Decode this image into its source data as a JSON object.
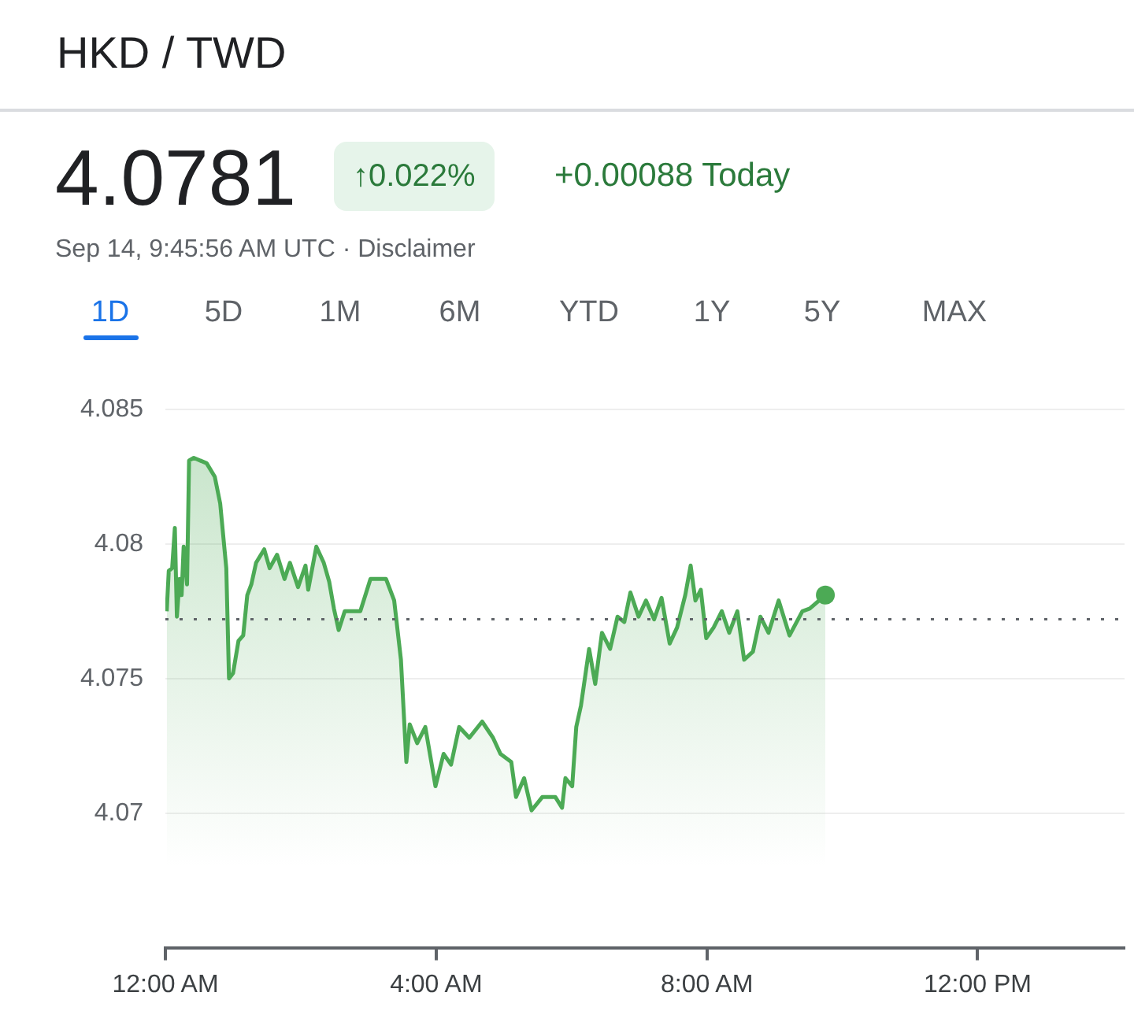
{
  "chart_data": {
    "type": "area",
    "title": "HKD / TWD",
    "subtitle": "Sep 14, 9:45:56 AM UTC · Disclaimer",
    "annotations": [
      "4.0781",
      "↑0.022%",
      "+0.00088 Today",
      "1D",
      "5D",
      "1M",
      "6M",
      "YTD",
      "1Y",
      "5Y",
      "MAX"
    ],
    "x": [
      0.02,
      0.05,
      0.1,
      0.14,
      0.17,
      0.21,
      0.24,
      0.27,
      0.32,
      0.35,
      0.42,
      0.61,
      0.73,
      0.81,
      0.9,
      0.94,
      1.0,
      1.08,
      1.15,
      1.21,
      1.27,
      1.34,
      1.46,
      1.54,
      1.65,
      1.76,
      1.84,
      1.96,
      2.07,
      2.11,
      2.23,
      2.34,
      2.42,
      2.49,
      2.56,
      2.65,
      2.88,
      3.03,
      3.26,
      3.38,
      3.48,
      3.56,
      3.61,
      3.72,
      3.84,
      3.99,
      4.11,
      4.22,
      4.34,
      4.49,
      4.68,
      4.84,
      4.95,
      5.11,
      5.18,
      5.3,
      5.41,
      5.57,
      5.76,
      5.86,
      5.91,
      6.01,
      6.07,
      6.14,
      6.26,
      6.35,
      6.45,
      6.57,
      6.68,
      6.78,
      6.87,
      6.99,
      7.1,
      7.22,
      7.33,
      7.45,
      7.56,
      7.68,
      7.76,
      7.83,
      7.91,
      7.99,
      8.1,
      8.22,
      8.33,
      8.45,
      8.55,
      8.68,
      8.79,
      8.91,
      9.06,
      9.22,
      9.41,
      9.52,
      9.75
    ],
    "series": [
      {
        "color": "#4caa55",
        "values": [
          4.0775,
          4.079,
          4.0791,
          4.0806,
          4.0773,
          4.0787,
          4.0781,
          4.0799,
          4.0785,
          4.0831,
          4.0832,
          4.083,
          4.0825,
          4.0815,
          4.0791,
          4.075,
          4.0752,
          4.0764,
          4.0766,
          4.0781,
          4.0785,
          4.0793,
          4.0798,
          4.0791,
          4.0796,
          4.0787,
          4.0793,
          4.0784,
          4.0792,
          4.0783,
          4.0799,
          4.0793,
          4.0786,
          4.0776,
          4.0768,
          4.0775,
          4.0775,
          4.0787,
          4.0787,
          4.0779,
          4.0757,
          4.0719,
          4.0733,
          4.0726,
          4.0732,
          4.071,
          4.0722,
          4.0718,
          4.0732,
          4.0728,
          4.0734,
          4.0728,
          4.0722,
          4.0719,
          4.0706,
          4.0713,
          4.0701,
          4.0706,
          4.0706,
          4.0702,
          4.0713,
          4.071,
          4.0732,
          4.074,
          4.0761,
          4.0748,
          4.0767,
          4.0761,
          4.0773,
          4.0771,
          4.0782,
          4.0773,
          4.0779,
          4.0772,
          4.078,
          4.0763,
          4.0769,
          4.0781,
          4.0792,
          4.0779,
          4.0783,
          4.0765,
          4.0769,
          4.0775,
          4.0767,
          4.0775,
          4.0757,
          4.076,
          4.0773,
          4.0767,
          4.0779,
          4.0766,
          4.0775,
          4.0776,
          4.0781
        ]
      }
    ],
    "xlim": [
      0,
      14.17
    ],
    "xticks": [
      {
        "value": 0,
        "label": "12:00 AM"
      },
      {
        "value": 4,
        "label": "4:00 AM"
      },
      {
        "value": 8,
        "label": "8:00 AM"
      },
      {
        "value": 12,
        "label": "12:00 PM"
      }
    ],
    "ylim": [
      4.065,
      4.085
    ],
    "yticks": [
      4.07,
      4.075,
      4.08,
      4.085
    ],
    "grid": "y",
    "legend": false,
    "ref_lines": [
      {
        "axis": "y",
        "value": 4.0772,
        "color": "#5f6368",
        "line_style": "dotted"
      }
    ]
  }
}
